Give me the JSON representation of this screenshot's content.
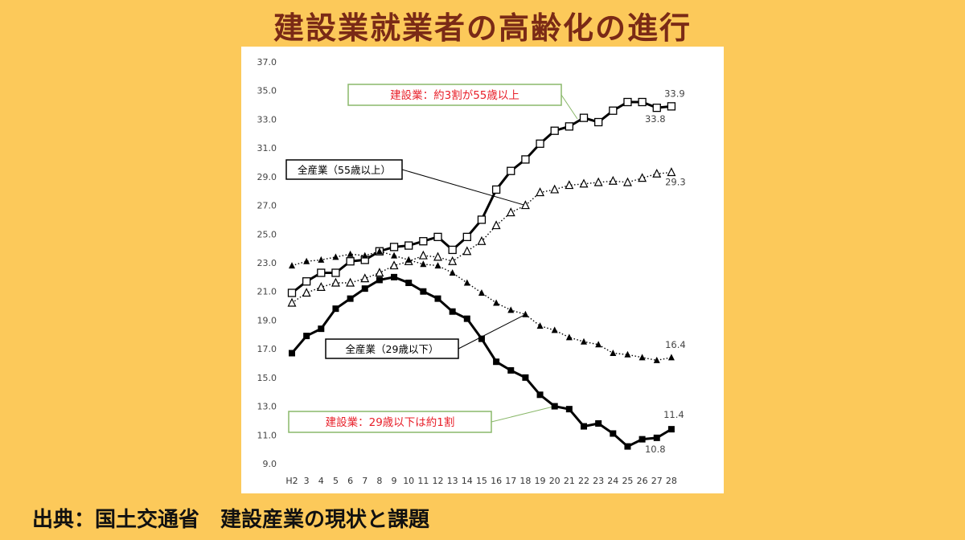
{
  "title": "建設業就業者の高齢化の進行",
  "source": "出典：国土交通省　建設産業の現状と課題",
  "chart_data": {
    "type": "line",
    "categories": [
      "H2",
      "3",
      "4",
      "5",
      "6",
      "7",
      "8",
      "9",
      "10",
      "11",
      "12",
      "13",
      "14",
      "15",
      "16",
      "17",
      "18",
      "19",
      "20",
      "21",
      "22",
      "23",
      "24",
      "25",
      "26",
      "27",
      "28"
    ],
    "ylim": [
      9.0,
      37.0
    ],
    "yticks": [
      "9.0",
      "11.0",
      "13.0",
      "15.0",
      "17.0",
      "19.0",
      "21.0",
      "23.0",
      "25.0",
      "27.0",
      "29.0",
      "31.0",
      "33.0",
      "35.0",
      "37.0"
    ],
    "series": [
      {
        "key": "const55",
        "values": [
          20.9,
          21.7,
          22.3,
          22.3,
          23.1,
          23.2,
          23.8,
          24.1,
          24.2,
          24.5,
          24.8,
          23.9,
          24.8,
          26.0,
          28.1,
          29.4,
          30.2,
          31.3,
          32.2,
          32.5,
          33.1,
          32.8,
          33.6,
          34.2,
          34.2,
          33.8,
          33.9
        ],
        "color": "#000000",
        "style": "solid",
        "marker": "open-square"
      },
      {
        "key": "all55",
        "values": [
          20.2,
          20.9,
          21.3,
          21.6,
          21.6,
          21.9,
          22.3,
          22.8,
          23.1,
          23.5,
          23.4,
          23.1,
          23.8,
          24.5,
          25.6,
          26.5,
          27.0,
          27.9,
          28.1,
          28.4,
          28.5,
          28.6,
          28.7,
          28.6,
          28.9,
          29.2,
          29.3
        ],
        "color": "#000000",
        "style": "dotted",
        "marker": "open-triangle"
      },
      {
        "key": "all29",
        "values": [
          22.8,
          23.1,
          23.2,
          23.4,
          23.6,
          23.5,
          23.8,
          23.5,
          23.2,
          22.9,
          22.8,
          22.3,
          21.6,
          20.9,
          20.2,
          19.7,
          19.4,
          18.6,
          18.3,
          17.8,
          17.5,
          17.3,
          16.7,
          16.6,
          16.4,
          16.2,
          16.4
        ],
        "color": "#000000",
        "style": "dotted",
        "marker": "filled-triangle"
      },
      {
        "key": "const29",
        "values": [
          16.7,
          17.9,
          18.4,
          19.8,
          20.5,
          21.2,
          21.8,
          22.0,
          21.6,
          21.0,
          20.5,
          19.6,
          19.1,
          17.7,
          16.1,
          15.5,
          15.0,
          13.8,
          13.0,
          12.8,
          11.6,
          11.8,
          11.1,
          10.2,
          10.7,
          10.8,
          11.4
        ],
        "color": "#000000",
        "style": "solid",
        "marker": "filled-square"
      }
    ],
    "data_labels": [
      {
        "key": "lbl1",
        "series": "const55",
        "index": 26,
        "text": "33.9"
      },
      {
        "key": "lbl2",
        "series": "const55",
        "index": 25,
        "text": "33.8"
      },
      {
        "key": "lbl3",
        "series": "all55",
        "index": 26,
        "text": "29.3"
      },
      {
        "key": "lbl4",
        "series": "all29",
        "index": 26,
        "text": "16.4"
      },
      {
        "key": "lbl5",
        "series": "const29",
        "index": 26,
        "text": "11.4"
      },
      {
        "key": "lbl6",
        "series": "const29",
        "index": 25,
        "text": "10.8"
      }
    ],
    "annotations": {
      "const55": {
        "text": "建設業：約3割が55歳以上",
        "text_color": "#e8202a",
        "border_color": "#8ab86a"
      },
      "all55": {
        "text": "全産業（55歳以上）",
        "text_color": "#000000",
        "border_color": "#000000"
      },
      "all29": {
        "text": "全産業（29歳以下）",
        "text_color": "#000000",
        "border_color": "#000000"
      },
      "const29": {
        "text": "建設業：29歳以下は約1割",
        "text_color": "#e8202a",
        "border_color": "#8ab86a"
      }
    },
    "grid": false
  }
}
